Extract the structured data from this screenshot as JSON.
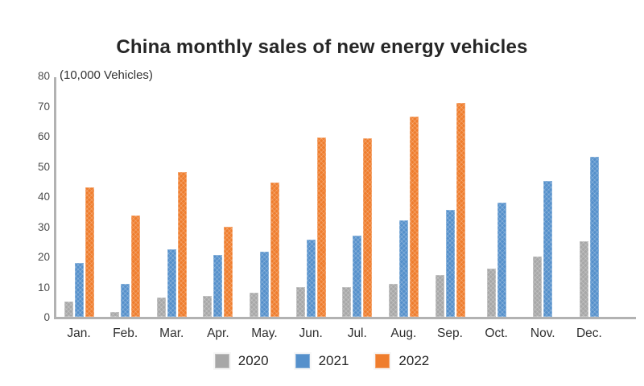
{
  "chart_data": {
    "type": "bar",
    "title": "China monthly sales of new energy vehicles",
    "unit_label": "(10,000 Vehicles)",
    "categories": [
      "Jan.",
      "Feb.",
      "Mar.",
      "Apr.",
      "May.",
      "Jun.",
      "Jul.",
      "Aug.",
      "Sep.",
      "Oct.",
      "Nov.",
      "Dec."
    ],
    "series": [
      {
        "name": "2020",
        "color": "#a7a7a7",
        "values": [
          5,
          1.5,
          6.5,
          7,
          8,
          10,
          10,
          11,
          14,
          16,
          20,
          25
        ]
      },
      {
        "name": "2021",
        "color": "#5590cb",
        "values": [
          17.9,
          11,
          22.5,
          20.5,
          21.5,
          25.5,
          27,
          32,
          35.5,
          38,
          45,
          53
        ]
      },
      {
        "name": "2022",
        "color": "#ef7d2d",
        "values": [
          43,
          33.5,
          48,
          30,
          44.5,
          59.5,
          59.3,
          66.5,
          71,
          null,
          null,
          null
        ]
      }
    ],
    "y_axis": {
      "min": 0,
      "max": 80,
      "tick_step": 10,
      "ticks": [
        80,
        70,
        60,
        50,
        40,
        30,
        20,
        10,
        0
      ]
    },
    "grid": false,
    "legend_position": "bottom",
    "axis_color": "#b2b2b2",
    "tick_label_color": "#4c4c4c",
    "background": "#ffffff"
  }
}
